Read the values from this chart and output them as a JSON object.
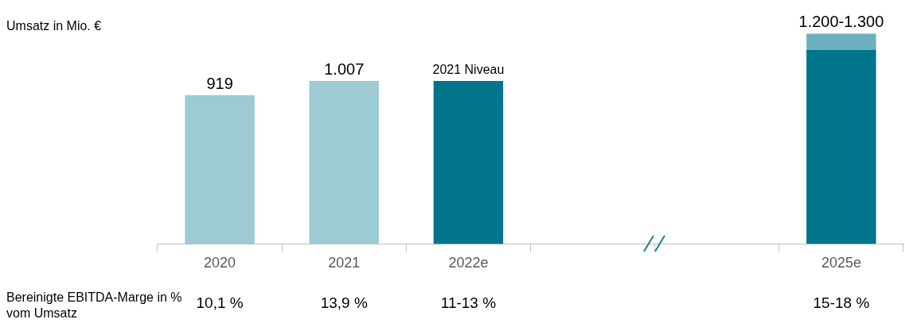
{
  "chart_data": {
    "type": "bar",
    "stacked": true,
    "ylabel": "Umsatz in Mio. €",
    "categories": [
      "2020",
      "2021",
      "2022e",
      null,
      null,
      "2025e"
    ],
    "series": [
      {
        "colors": [
          "#9ccbd4",
          "#9ccbd4",
          "#00758c",
          null,
          null,
          "#00758c"
        ],
        "values": [
          919,
          1007,
          1007,
          null,
          null,
          1200
        ],
        "value_labels": [
          "919",
          "1.007",
          null,
          null,
          null,
          null
        ]
      },
      {
        "color": "#6fb0bf",
        "values": [
          null,
          null,
          null,
          null,
          null,
          100
        ],
        "value_labels": [
          null,
          null,
          null,
          null,
          null,
          "1.200-1.300"
        ]
      }
    ],
    "tick_labels": "x",
    "grid": false,
    "legend": false,
    "annotations": [
      {
        "text": "2021 Niveau",
        "x": "2022e",
        "y": 1007
      },
      "Bereinigte EBITDA-Marge in % vom Umsatz",
      "10,1 %",
      "13,9 %",
      "11-13 %",
      "15-18 %"
    ]
  }
}
